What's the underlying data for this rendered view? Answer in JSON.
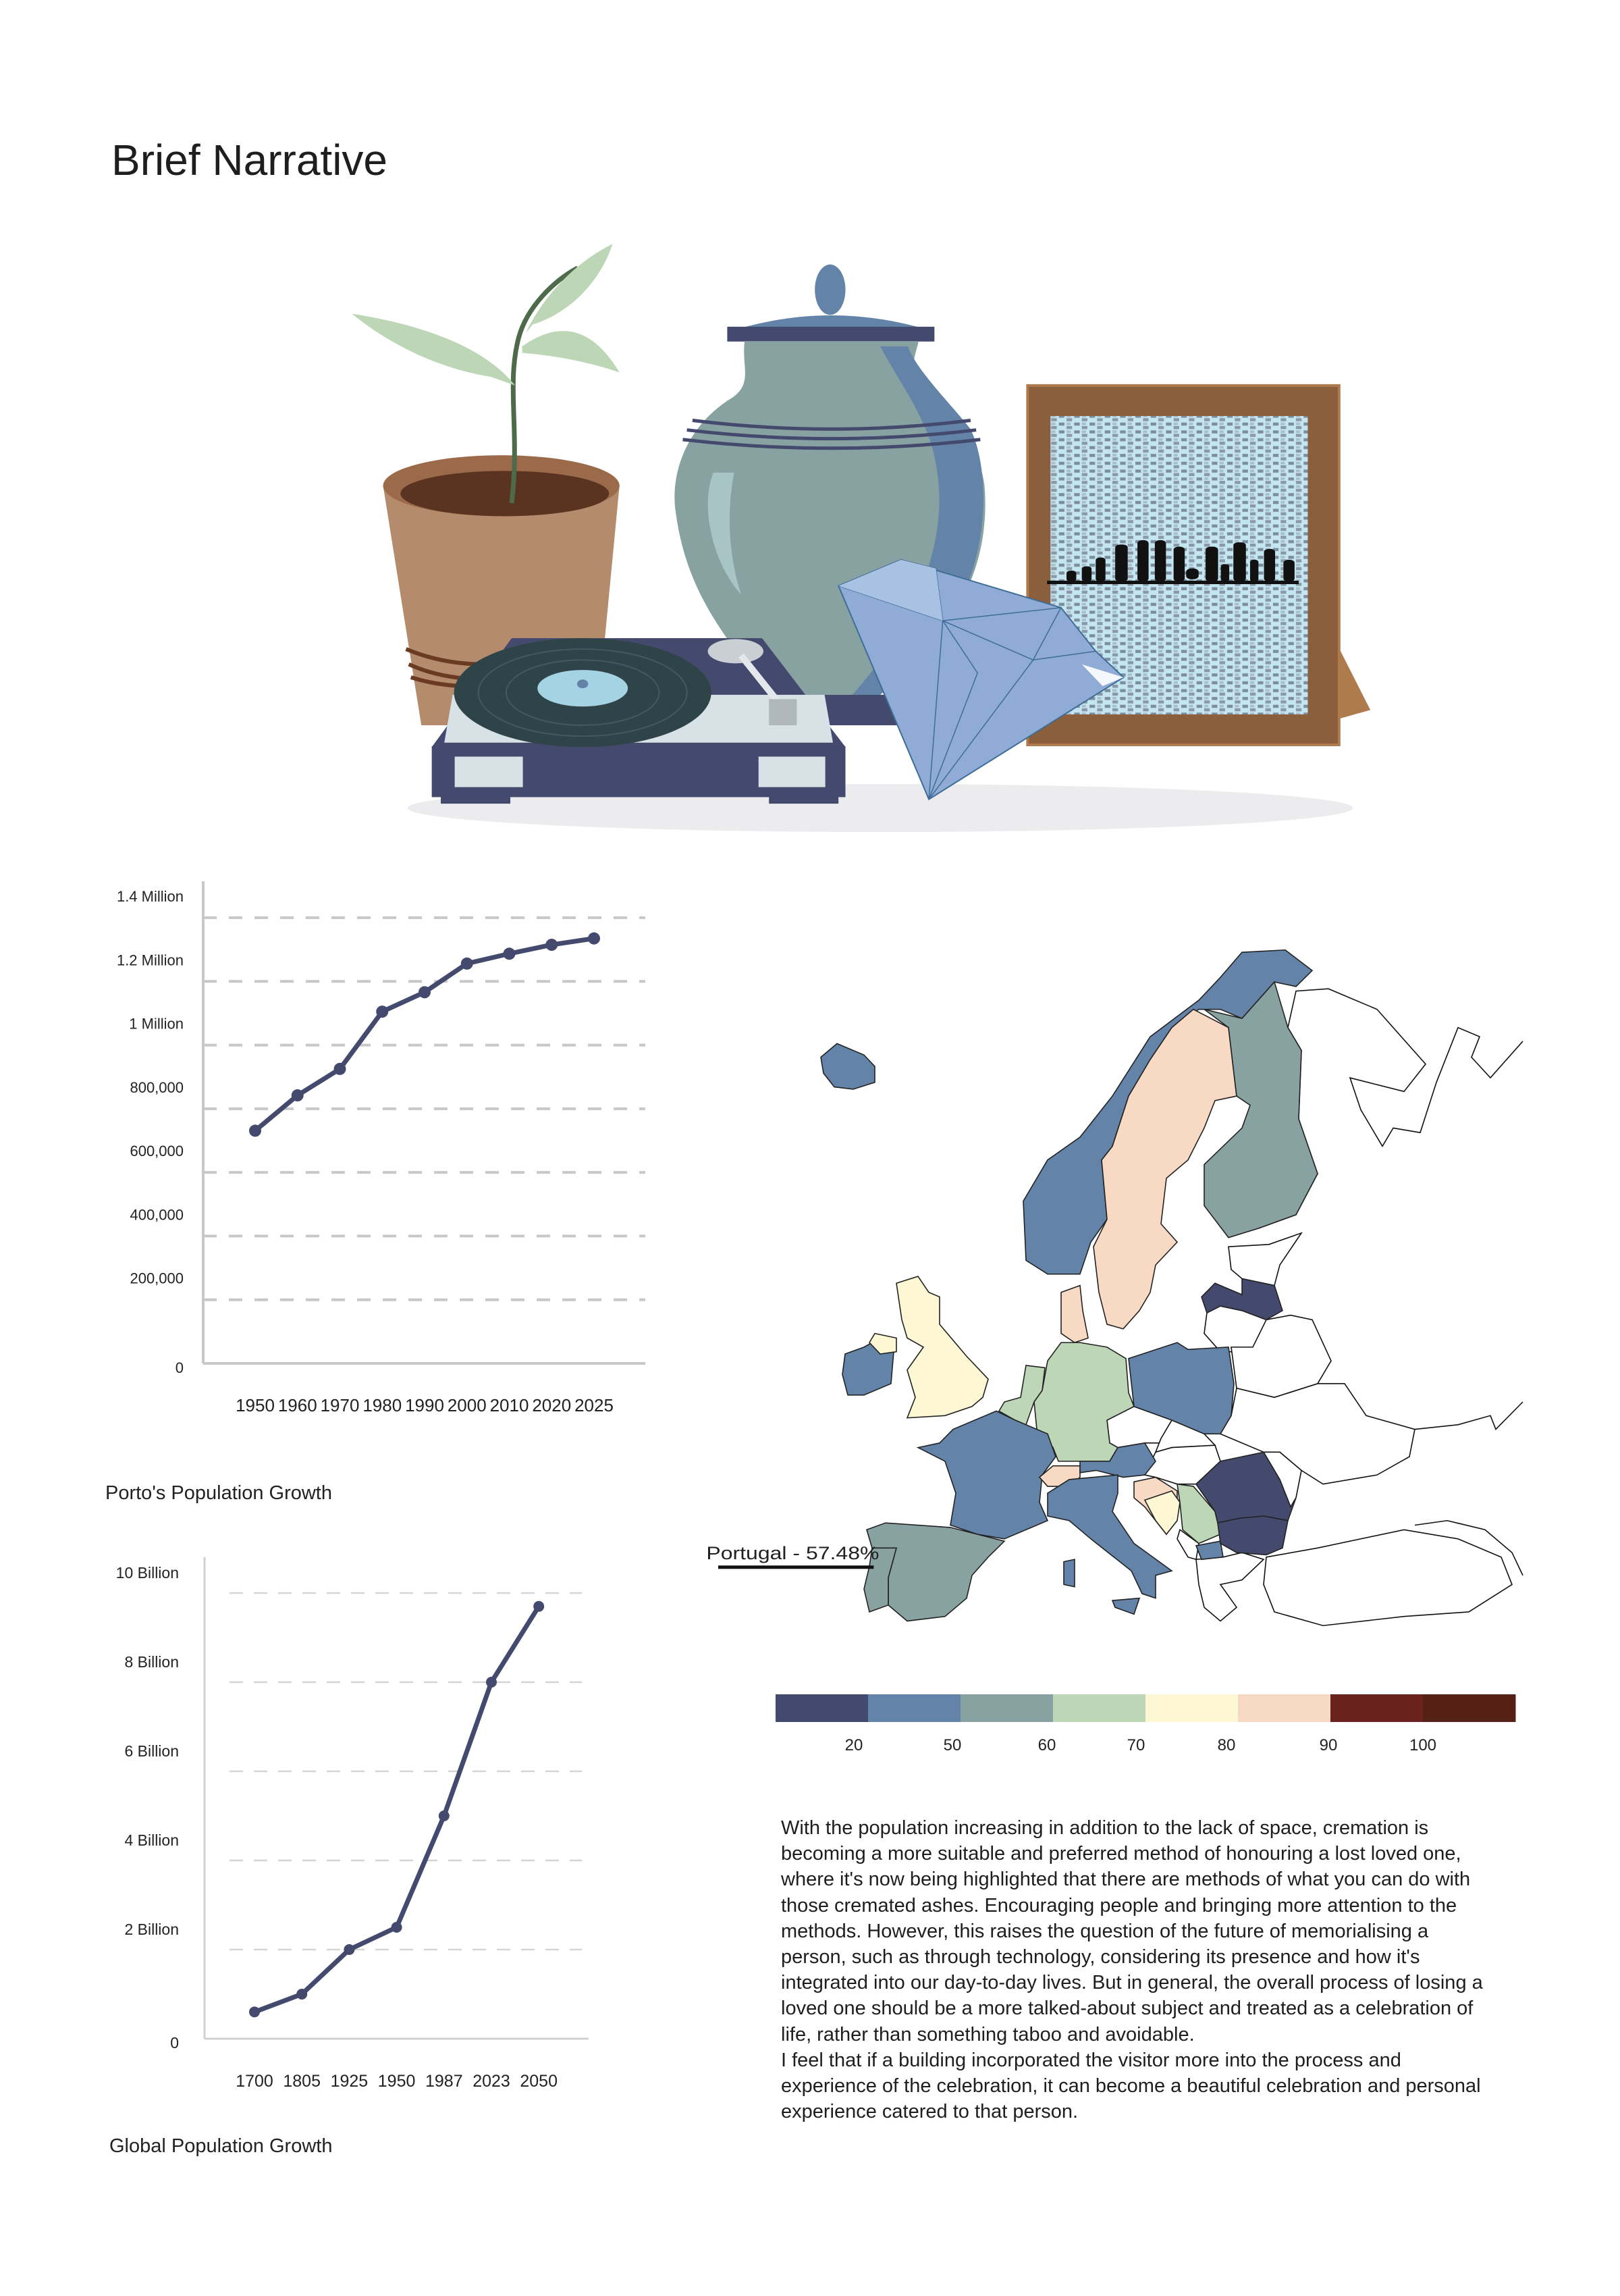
{
  "page": {
    "title": "Brief Narrative"
  },
  "colors": {
    "line": "#434a6e",
    "grid": "#c8c8c8",
    "scale": [
      "#444a6e",
      "#6384a8",
      "#88a2a2",
      "#bcd6b6",
      "#fdf7d3",
      "#f8d9c3",
      "#6a221e",
      "#552117"
    ]
  },
  "illustration": {
    "icons": [
      "plant-pot-icon",
      "urn-icon",
      "photo-frame-icon",
      "record-player-icon",
      "diamond-icon"
    ]
  },
  "chart_data": [
    {
      "type": "line",
      "title": "Porto's Population Growth",
      "categories": [
        "1950",
        "1960",
        "1970",
        "1980",
        "1990",
        "2000",
        "2010",
        "2020",
        "2025"
      ],
      "values": [
        731000,
        842000,
        925000,
        1105000,
        1166000,
        1256000,
        1287000,
        1315000,
        1335000
      ],
      "ylim": [
        0,
        1400000
      ],
      "yticks": [
        0,
        200000,
        400000,
        600000,
        800000,
        1000000,
        1200000,
        1400000
      ],
      "ytick_labels": [
        "0",
        "200,000",
        "400,000",
        "600,000",
        "800,000",
        "1 Million",
        "1.2 Million",
        "1.4 Million"
      ],
      "grid": "horizontal dashed",
      "xlabel": "",
      "ylabel": ""
    },
    {
      "type": "line",
      "title": "Global Population Growth",
      "categories": [
        "1700",
        "1805",
        "1925",
        "1950",
        "1987",
        "2023",
        "2050"
      ],
      "values": [
        0.6,
        1.0,
        2.0,
        2.5,
        5.0,
        8.0,
        9.7
      ],
      "unit": "Billion",
      "ylim": [
        0,
        10
      ],
      "yticks": [
        0,
        2,
        4,
        6,
        8,
        10
      ],
      "ytick_labels": [
        "0",
        "2 Billion",
        "4 Billion",
        "6 Billion",
        "8 Billion",
        "10 Billion"
      ],
      "grid": "horizontal dashed",
      "xlabel": "",
      "ylabel": ""
    }
  ],
  "map": {
    "annotation": "Portugal - 57.48%",
    "legend_labels": [
      "20",
      "50",
      "60",
      "70",
      "80",
      "90",
      "100"
    ],
    "countries": {
      "iceland": 1,
      "norway": 1,
      "sweden": 5,
      "finland": 2,
      "denmark": 5,
      "latvia": 0,
      "ireland": 1,
      "northern-ireland": 4,
      "great-britain": 4,
      "benelux": 3,
      "germany": 3,
      "poland": 1,
      "france": 1,
      "switzerland": 5,
      "austria": 1,
      "italy": 1,
      "spain": 2,
      "portugal": 2,
      "croatia": 5,
      "bosnia": 4,
      "serbia": 3,
      "north-macedonia": 1,
      "romania": 0,
      "bulgaria": 0
    }
  },
  "narrative": {
    "paragraphs": [
      "With the population increasing in addition to the lack of space, cremation is becoming a more suitable and preferred method of honouring a lost loved one, where it's now being highlighted that there are methods of what you can do with those cremated ashes. Encouraging people and bringing more attention to the methods. However, this raises the question of the future of memorialising a person, such as through technology, considering its presence and how it's integrated into our day-to-day lives. But in general, the overall process of losing a loved one should be a more talked-about subject and treated as a celebration of life, rather than something taboo and avoidable.",
      "I feel that if a building incorporated the visitor more into the process and experience of the celebration, it can become a beautiful celebration and personal experience catered to that person."
    ]
  }
}
